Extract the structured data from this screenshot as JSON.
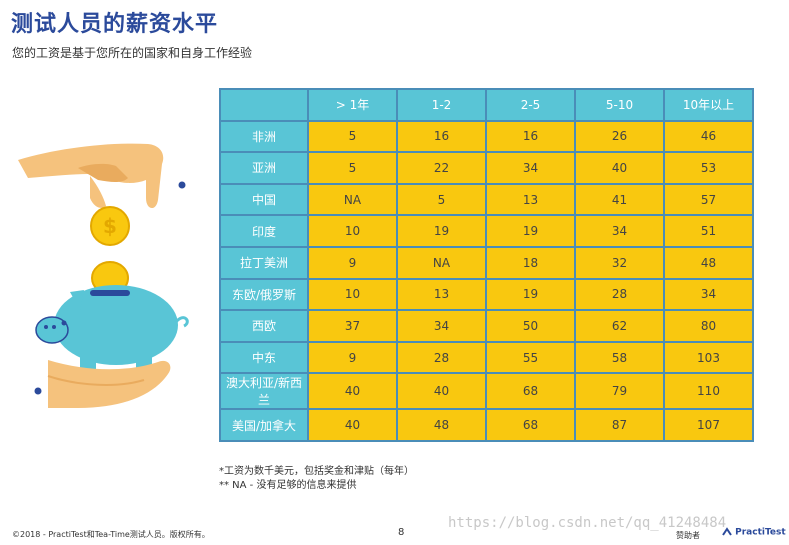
{
  "header": {
    "title": "测试人员的薪资水平",
    "subtitle": "您的工资是基于您所在的国家和自身工作经验"
  },
  "table": {
    "columns": [
      "> 1年",
      "1-2",
      "2-5",
      "5-10",
      "10年以上"
    ],
    "rows": [
      {
        "region": "非洲",
        "values": [
          "5",
          "16",
          "16",
          "26",
          "46"
        ]
      },
      {
        "region": "亚洲",
        "values": [
          "5",
          "22",
          "34",
          "40",
          "53"
        ]
      },
      {
        "region": "中国",
        "values": [
          "NA",
          "5",
          "13",
          "41",
          "57"
        ]
      },
      {
        "region": "印度",
        "values": [
          "10",
          "19",
          "19",
          "34",
          "51"
        ]
      },
      {
        "region": "拉丁美洲",
        "values": [
          "9",
          "NA",
          "18",
          "32",
          "48"
        ]
      },
      {
        "region": "东欧/俄罗斯",
        "values": [
          "10",
          "13",
          "19",
          "28",
          "34"
        ]
      },
      {
        "region": "西欧",
        "values": [
          "37",
          "34",
          "50",
          "62",
          "80"
        ]
      },
      {
        "region": "中东",
        "values": [
          "9",
          "28",
          "55",
          "58",
          "103"
        ]
      },
      {
        "region": "澳大利亚/新西兰",
        "values": [
          "40",
          "40",
          "68",
          "79",
          "110"
        ]
      },
      {
        "region": "美国/加拿大",
        "values": [
          "40",
          "48",
          "68",
          "87",
          "107"
        ]
      }
    ]
  },
  "notes": {
    "note1": "*工资为数千美元，包括奖金和津贴（每年）",
    "note2": "** NA - 没有足够的信息来提供"
  },
  "footer": {
    "copyright": "©2018 - PractiTest和Tea-Time测试人员。版权所有。",
    "page_number": "8",
    "watermark": "https://blog.csdn.net/qq_41248484",
    "sponsor_label": "赞助者",
    "logo_text": "PractiTest"
  },
  "colors": {
    "title": "#2b4a9b",
    "header_cell": "#59c5d6",
    "value_cell": "#f9c80f",
    "border": "#4a8db8"
  },
  "icons": [
    "hand-dropping-coin-icon",
    "dollar-coin-icon",
    "piggy-bank-icon",
    "supporting-hand-icon"
  ]
}
